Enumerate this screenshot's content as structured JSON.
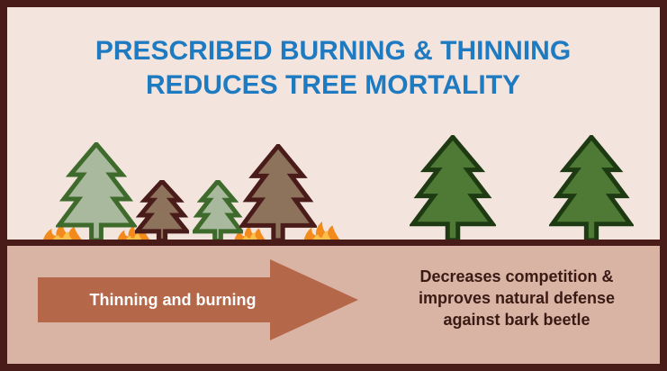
{
  "title": {
    "lines": [
      "PRESCRIBED BURNING & THINNING",
      "REDUCES TREE MORTALITY"
    ]
  },
  "arrow": {
    "label": "Thinning and burning"
  },
  "result": {
    "lines": [
      "Decreases competition &",
      "improves natural defense",
      "against bark beetle"
    ]
  }
}
